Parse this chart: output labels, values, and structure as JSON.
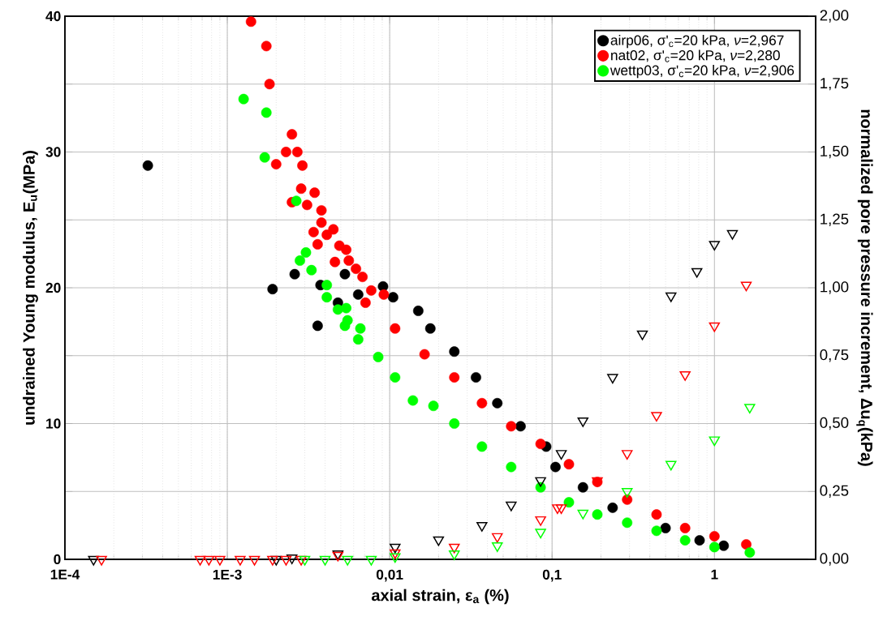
{
  "chart_data": {
    "type": "scatter",
    "log": "x",
    "grid": true,
    "legend": "top right",
    "xlabel": "axial strain, ε$_{a}$ (%)",
    "ylabel": "undrained Young modulus, E$_{u}$(MPa)",
    "y2label": "normalized pore pressure increment, Δu$_{q}$(kPa)",
    "xlim": [
      0.0001,
      4.2
    ],
    "ylim": [
      0,
      40
    ],
    "y2lim": [
      0,
      2
    ],
    "xticks": [
      {
        "value": 0.0001,
        "label": "1E-4"
      },
      {
        "value": 0.001,
        "label": "1E-3"
      },
      {
        "value": 0.01,
        "label": "0,01"
      },
      {
        "value": 0.1,
        "label": "0,1"
      },
      1
    ],
    "yticks": [
      0,
      {
        "value": 5,
        "label": null
      },
      10,
      {
        "value": 15,
        "label": null
      },
      20,
      {
        "value": 25,
        "label": null
      },
      30,
      {
        "value": 35,
        "label": null
      },
      40
    ],
    "y2ticks": [
      {
        "value": 0,
        "label": "0,00"
      },
      {
        "value": 0.25,
        "label": "0,25"
      },
      {
        "value": 0.5,
        "label": "0,50"
      },
      {
        "value": 0.75,
        "label": "0,75"
      },
      {
        "value": 1,
        "label": "1,00"
      },
      {
        "value": 1.25,
        "label": "1,25"
      },
      {
        "value": 1.5,
        "label": "1,50"
      },
      {
        "value": 1.75,
        "label": "1,75"
      },
      {
        "value": 2,
        "label": "2,00"
      }
    ],
    "series": [
      {
        "name": "airp06, σ'$_{c}$=20 kPa, *ν*=2,967",
        "color": "#000000",
        "marker": "circle",
        "x": [
          0.000324,
          0.0019,
          0.0026,
          0.0036,
          0.00375,
          0.0048,
          0.0053,
          0.0064,
          0.0091,
          0.0105,
          0.015,
          0.0178,
          0.025,
          0.034,
          0.046,
          0.064,
          0.092,
          0.105,
          0.155,
          0.236,
          0.5,
          0.81,
          1.14
        ],
        "values": [
          29.0,
          19.9,
          21.0,
          17.2,
          20.2,
          18.9,
          21.0,
          19.5,
          20.1,
          19.3,
          18.3,
          17.0,
          15.3,
          13.4,
          11.5,
          9.8,
          8.3,
          6.8,
          5.3,
          3.8,
          2.3,
          1.4,
          1.0
        ]
      },
      {
        "name": "nat02, σ'$_{c}$=20 kPa, *ν*=2,280",
        "color": "#ff0000",
        "marker": "circle",
        "x": [
          0.0014,
          0.00174,
          0.00182,
          0.0025,
          0.0023,
          0.0027,
          0.002,
          0.0029,
          0.00285,
          0.0025,
          0.00345,
          0.0031,
          0.0038,
          0.0038,
          0.0034,
          0.0045,
          0.0041,
          0.0036,
          0.0049,
          0.0054,
          0.0046,
          0.0056,
          0.0062,
          0.0068,
          0.0077,
          0.0071,
          0.0092,
          0.0108,
          0.0164,
          0.025,
          0.037,
          0.056,
          0.085,
          0.127,
          0.19,
          0.29,
          0.44,
          0.66,
          1.0,
          1.57
        ],
        "values": [
          39.6,
          37.8,
          35.0,
          31.3,
          30.0,
          30.0,
          29.1,
          29.0,
          27.3,
          26.3,
          27.0,
          26.1,
          25.7,
          24.8,
          24.1,
          24.3,
          23.9,
          23.2,
          23.1,
          22.8,
          21.9,
          22.0,
          21.4,
          20.8,
          19.8,
          18.9,
          19.5,
          17.0,
          15.1,
          13.4,
          11.5,
          9.8,
          8.5,
          7.0,
          5.7,
          4.4,
          3.3,
          2.3,
          1.7,
          1.1
        ]
      },
      {
        "name": "wettp03, σ'$_{c}$=20 kPa, *ν*=2,906",
        "color": "#00ff00",
        "marker": "circle",
        "x": [
          0.00126,
          0.00174,
          0.0017,
          0.00266,
          0.00305,
          0.0028,
          0.0033,
          0.0041,
          0.0041,
          0.0048,
          0.0054,
          0.0055,
          0.0053,
          0.0066,
          0.0064,
          0.0085,
          0.0108,
          0.0139,
          0.0186,
          0.025,
          0.037,
          0.056,
          0.085,
          0.127,
          0.19,
          0.29,
          0.44,
          0.66,
          1.0,
          1.65
        ],
        "values": [
          33.9,
          32.9,
          29.6,
          26.4,
          22.6,
          22.0,
          21.3,
          20.2,
          19.3,
          18.4,
          18.5,
          17.6,
          17.2,
          17.0,
          16.2,
          14.9,
          13.4,
          11.7,
          11.3,
          10.0,
          8.3,
          6.8,
          5.3,
          4.2,
          3.3,
          2.7,
          2.1,
          1.4,
          0.9,
          0.5
        ]
      },
      {
        "color": "#000000",
        "marker": "triangle",
        "axis": "y2",
        "x": [
          0.00015,
          0.002,
          0.0025,
          0.0048,
          0.0108,
          0.02,
          0.037,
          0.056,
          0.085,
          0.114,
          0.155,
          0.236,
          0.36,
          0.54,
          0.78,
          1.0,
          1.29
        ],
        "values": [
          0,
          0,
          0.005,
          0.02,
          0.045,
          0.072,
          0.125,
          0.2,
          0.29,
          0.39,
          0.51,
          0.67,
          0.83,
          0.97,
          1.06,
          1.16,
          1.2
        ]
      },
      {
        "color": "#ff0000",
        "marker": "triangle",
        "axis": "y2",
        "x": [
          0.000168,
          0.00068,
          0.00077,
          0.0009,
          0.0012,
          0.00147,
          0.0019,
          0.0023,
          0.00285,
          0.0048,
          0.0108,
          0.025,
          0.046,
          0.085,
          0.108,
          0.114,
          0.19,
          0.29,
          0.44,
          0.66,
          1.0,
          1.57
        ],
        "values": [
          0,
          0,
          0,
          0,
          0,
          0,
          0,
          0,
          0,
          0.015,
          0.024,
          0.045,
          0.084,
          0.146,
          0.19,
          0.19,
          0.29,
          0.39,
          0.53,
          0.68,
          0.86,
          1.01
        ]
      },
      {
        "color": "#00ff00",
        "marker": "triangle",
        "axis": "y2",
        "x": [
          0.003,
          0.004,
          0.0055,
          0.0077,
          0.0108,
          0.025,
          0.046,
          0.085,
          0.155,
          0.29,
          0.54,
          1.0,
          1.65
        ],
        "values": [
          0,
          0,
          0,
          0,
          0.01,
          0.02,
          0.05,
          0.1,
          0.17,
          0.25,
          0.35,
          0.44,
          0.56
        ]
      }
    ]
  }
}
